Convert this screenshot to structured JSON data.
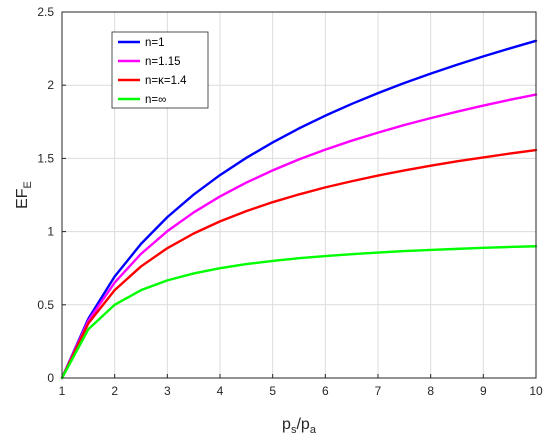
{
  "chart_data": {
    "type": "line",
    "xlabel": {
      "base1": "p",
      "sub1": "s",
      "sep": "/",
      "base2": "p",
      "sub2": "a"
    },
    "ylabel": {
      "base": "EF",
      "sub": "E"
    },
    "xlim": [
      1,
      10
    ],
    "ylim": [
      0,
      2.5
    ],
    "xticks": [
      "1",
      "2",
      "3",
      "4",
      "5",
      "6",
      "7",
      "8",
      "9",
      "10"
    ],
    "yticks": [
      "0",
      "0.5",
      "1",
      "1.5",
      "2",
      "2.5"
    ],
    "grid": true,
    "legend_position": "top-left",
    "x": [
      1,
      1.5,
      2,
      2.5,
      3,
      3.5,
      4,
      4.5,
      5,
      5.5,
      6,
      6.5,
      7,
      7.5,
      8,
      8.5,
      9,
      9.5,
      10
    ],
    "series": [
      {
        "name": "n=1",
        "color": "#0000ff",
        "values": [
          0,
          0.405,
          0.693,
          0.916,
          1.099,
          1.253,
          1.386,
          1.504,
          1.609,
          1.705,
          1.792,
          1.872,
          1.946,
          2.015,
          2.079,
          2.14,
          2.197,
          2.251,
          2.303
        ]
      },
      {
        "name": "n=1.15",
        "color": "#ff00ff",
        "values": [
          0,
          0.391,
          0.652,
          0.848,
          1.003,
          1.131,
          1.24,
          1.335,
          1.418,
          1.493,
          1.56,
          1.621,
          1.676,
          1.728,
          1.775,
          1.819,
          1.861,
          1.9,
          1.936
        ]
      },
      {
        "name": "n=κ=1.4",
        "color": "#ff0000",
        "values": [
          0,
          0.373,
          0.6,
          0.762,
          0.887,
          0.987,
          1.07,
          1.14,
          1.201,
          1.254,
          1.302,
          1.344,
          1.383,
          1.418,
          1.45,
          1.48,
          1.507,
          1.533,
          1.557
        ]
      },
      {
        "name": "n=∞",
        "color": "#00ff00",
        "values": [
          0,
          0.333,
          0.5,
          0.6,
          0.667,
          0.714,
          0.75,
          0.778,
          0.8,
          0.818,
          0.833,
          0.846,
          0.857,
          0.867,
          0.875,
          0.882,
          0.889,
          0.895,
          0.9
        ]
      }
    ]
  }
}
